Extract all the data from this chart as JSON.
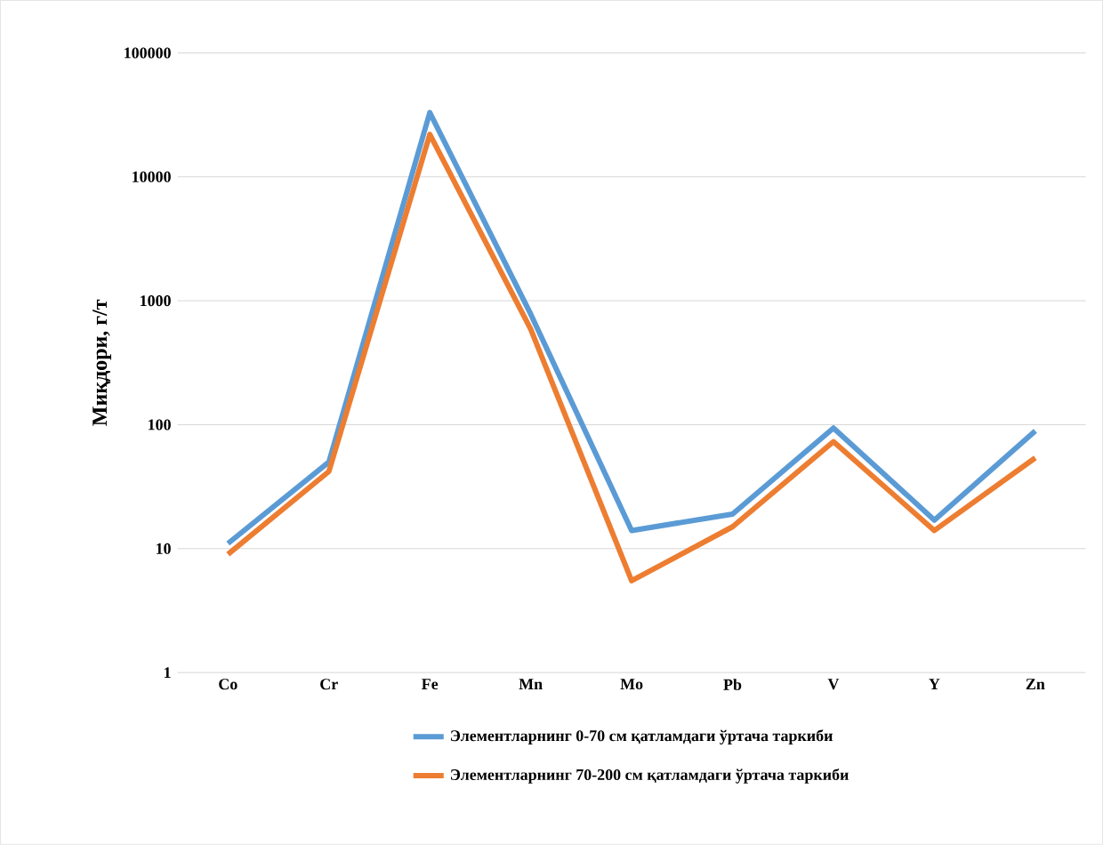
{
  "chart_data": {
    "type": "line",
    "ylabel": "Миқдори, г/т",
    "categories": [
      "Co",
      "Cr",
      "Fe",
      "Mn",
      "Mo",
      "Pb",
      "V",
      "Y",
      "Zn"
    ],
    "series": [
      {
        "name": "Элементларнинг 0-70 см қатламдаги ўртача таркиби",
        "color": "#5b9bd5",
        "values": [
          11,
          50,
          33000,
          780,
          14,
          19,
          94,
          17,
          89
        ]
      },
      {
        "name": "Элементларнинг 70-200 см қатламдаги ўртача таркиби",
        "color": "#ed7d31",
        "values": [
          9,
          42,
          22000,
          590,
          5.5,
          15,
          73,
          14,
          54
        ]
      }
    ],
    "log": "y",
    "ylim": [
      1,
      100000
    ],
    "yticks": [
      1,
      10,
      100,
      1000,
      10000,
      100000
    ],
    "grid": "y",
    "legend": "bottom",
    "marker": "none",
    "line_style": "solid"
  }
}
